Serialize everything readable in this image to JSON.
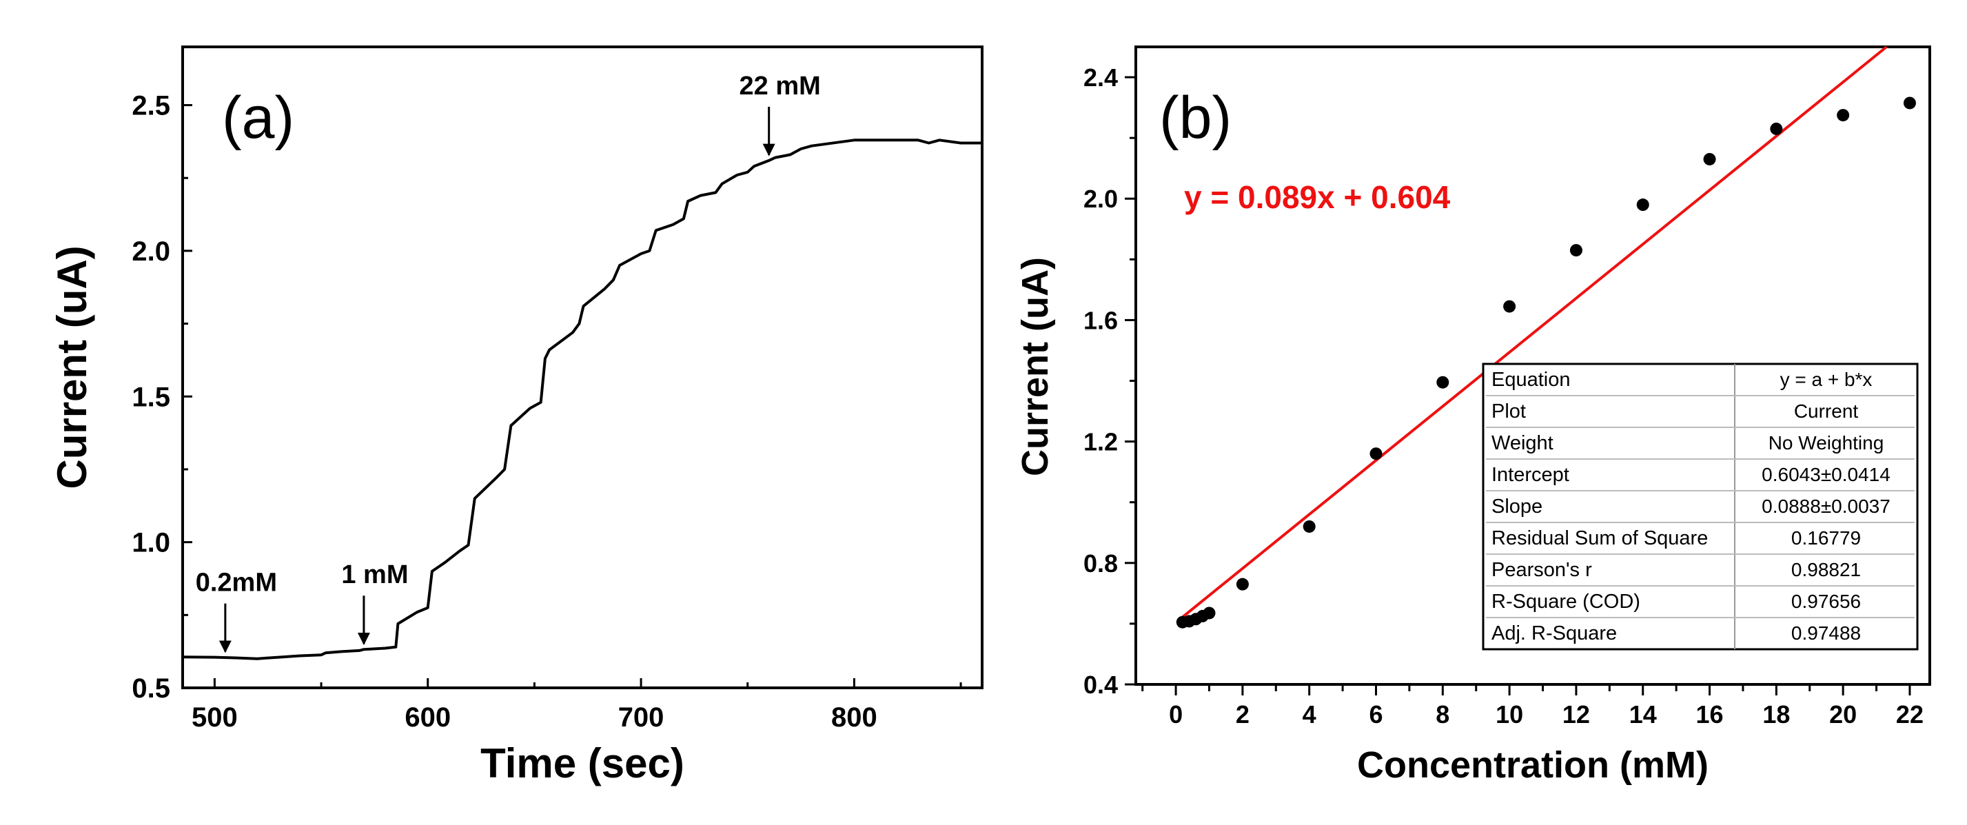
{
  "colors": {
    "axis": "#000000",
    "trace": "#000000",
    "fit_line": "#ee1111",
    "equation": "#ee1111",
    "table_border": "#000000"
  },
  "chart_data": [
    {
      "id": "a",
      "type": "line",
      "panel_label": "(a)",
      "xlabel": "Time (sec)",
      "ylabel": "Current (uA)",
      "xlim": [
        485,
        860
      ],
      "ylim": [
        0.5,
        2.7
      ],
      "xticks": [
        "500",
        "600",
        "700",
        "800"
      ],
      "yticks": [
        "0.5",
        "1.0",
        "1.5",
        "2.0",
        "2.5"
      ],
      "grid": false,
      "series": [
        {
          "name": "Current",
          "x": [
            485,
            500,
            510,
            520,
            530,
            540,
            550,
            552,
            560,
            568,
            570,
            580,
            585,
            586,
            595,
            600,
            602,
            608,
            615,
            619,
            622,
            632,
            636,
            639,
            648,
            653,
            655,
            657,
            668,
            671,
            673,
            683,
            687,
            690,
            700,
            704,
            707,
            715,
            720,
            722,
            728,
            735,
            738,
            745,
            750,
            753,
            760,
            763,
            770,
            775,
            780,
            800,
            830,
            835,
            840,
            850,
            860
          ],
          "y": [
            0.606,
            0.605,
            0.603,
            0.6,
            0.605,
            0.61,
            0.613,
            0.62,
            0.625,
            0.628,
            0.632,
            0.636,
            0.64,
            0.72,
            0.76,
            0.775,
            0.9,
            0.93,
            0.97,
            0.99,
            1.15,
            1.22,
            1.25,
            1.4,
            1.46,
            1.48,
            1.63,
            1.66,
            1.72,
            1.75,
            1.81,
            1.87,
            1.9,
            1.95,
            1.99,
            2.0,
            2.07,
            2.09,
            2.11,
            2.17,
            2.19,
            2.2,
            2.23,
            2.26,
            2.27,
            2.29,
            2.31,
            2.32,
            2.33,
            2.35,
            2.36,
            2.38,
            2.38,
            2.37,
            2.38,
            2.37,
            2.37
          ]
        }
      ],
      "annotations": [
        {
          "text": "0.2mM",
          "x": 505,
          "y": 0.605
        },
        {
          "text": "1 mM",
          "x": 570,
          "y": 0.632
        },
        {
          "text": "22 mM",
          "x": 760,
          "y": 2.31
        }
      ]
    },
    {
      "id": "b",
      "type": "scatter",
      "panel_label": "(b)",
      "xlabel": "Concentration (mM)",
      "ylabel": "Current (uA)",
      "xlim": [
        -1.2,
        22.6
      ],
      "ylim": [
        0.4,
        2.5
      ],
      "xticks": [
        "0",
        "2",
        "4",
        "6",
        "8",
        "10",
        "12",
        "14",
        "16",
        "18",
        "20",
        "22"
      ],
      "yticks": [
        "0.4",
        "0.8",
        "1.2",
        "1.6",
        "2.0",
        "2.4"
      ],
      "grid": false,
      "series": [
        {
          "name": "Current",
          "x": [
            0.2,
            0.4,
            0.6,
            0.8,
            1,
            2,
            4,
            6,
            8,
            10,
            12,
            14,
            16,
            18,
            20,
            22
          ],
          "y": [
            0.605,
            0.608,
            0.615,
            0.625,
            0.635,
            0.73,
            0.92,
            1.16,
            1.395,
            1.645,
            1.83,
            1.98,
            2.13,
            2.23,
            2.275,
            2.315
          ]
        }
      ],
      "fit": {
        "slope": 0.089,
        "intercept": 0.604,
        "x_start": 0.2,
        "x_end": 22.6
      },
      "equation_label": "y = 0.089x + 0.604",
      "table": [
        [
          "Equation",
          "y = a + b*x"
        ],
        [
          "Plot",
          "Current"
        ],
        [
          "Weight",
          "No Weighting"
        ],
        [
          "Intercept",
          "0.6043±0.0414"
        ],
        [
          "Slope",
          "0.0888±0.0037"
        ],
        [
          "Residual Sum of Square",
          "0.16779"
        ],
        [
          "Pearson's r",
          "0.98821"
        ],
        [
          "R-Square (COD)",
          "0.97656"
        ],
        [
          "Adj. R-Square",
          "0.97488"
        ]
      ]
    }
  ]
}
